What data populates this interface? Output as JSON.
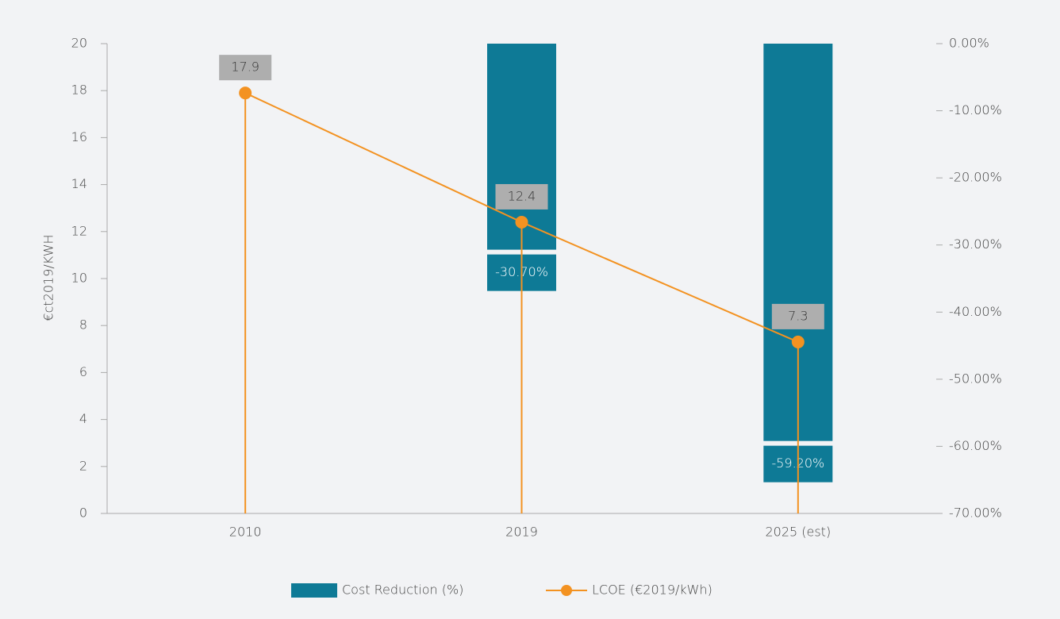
{
  "chart_data": {
    "type": "combo",
    "categories": [
      "2010",
      "2019",
      "2025 (est)"
    ],
    "ylabel": "€ct2019/KWH",
    "ylim": [
      0,
      20
    ],
    "yticks": [
      0,
      2,
      4,
      6,
      8,
      10,
      12,
      14,
      16,
      18,
      20
    ],
    "y2lim": [
      -70,
      0
    ],
    "y2ticks": [
      {
        "value": 0,
        "label": "0.00%"
      },
      {
        "value": -10,
        "label": "-10.00%"
      },
      {
        "value": -20,
        "label": "-20.00%"
      },
      {
        "value": -30,
        "label": "-30.00%"
      },
      {
        "value": -40,
        "label": "-40.00%"
      },
      {
        "value": -50,
        "label": "-50.00%"
      },
      {
        "value": -60,
        "label": "-60.00%"
      },
      {
        "value": -70,
        "label": "-70.00%"
      }
    ],
    "legend": "bottom",
    "series": [
      {
        "name": "Cost Reduction (%)",
        "type": "bar",
        "axis": "y2",
        "color": "#0e7a96",
        "values": [
          null,
          -30.7,
          -59.2
        ],
        "value_labels": [
          null,
          "-30.70%",
          "-59.20%"
        ]
      },
      {
        "name": "LCOE (€2019/kWh)",
        "type": "line",
        "color": "#f39221",
        "values": [
          17.9,
          12.4,
          7.3
        ]
      }
    ]
  }
}
